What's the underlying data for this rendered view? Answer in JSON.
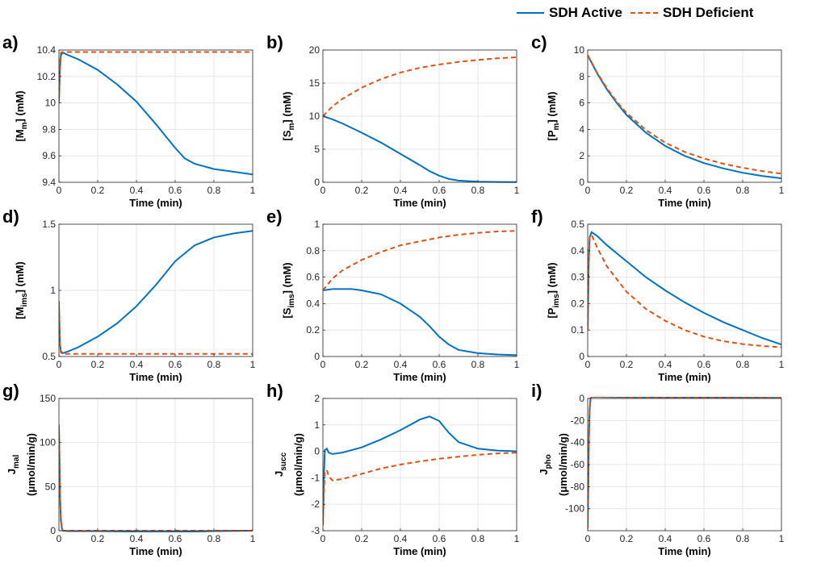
{
  "legend": {
    "items": [
      {
        "name": "SDH Active",
        "color": "#0072BD",
        "style": "solid"
      },
      {
        "name": "SDH Deficient",
        "color": "#D95319",
        "style": "dashed"
      }
    ]
  },
  "chart_data": [
    {
      "panel": "a)",
      "type": "line",
      "ylabel": "[M_m] (mM)",
      "xlabel": "Time (min)",
      "xlim": [
        0,
        1
      ],
      "ylim": [
        9.4,
        10.4
      ],
      "xticks": [
        0,
        0.2,
        0.4,
        0.6,
        0.8,
        1
      ],
      "xtick_labels": [
        "0",
        "0.2",
        "0.4",
        "0.6",
        "0.8",
        "1"
      ],
      "yticks": [
        9.4,
        9.6,
        9.8,
        10,
        10.2,
        10.4
      ],
      "ytick_labels": [
        "9.4",
        "9.6",
        "9.8",
        "10",
        "10.2",
        "10.4"
      ],
      "grid": true,
      "series": [
        {
          "name": "SDH Active",
          "x": [
            0,
            0.005,
            0.01,
            0.02,
            0.05,
            0.1,
            0.2,
            0.3,
            0.4,
            0.5,
            0.55,
            0.6,
            0.65,
            0.7,
            0.75,
            0.8,
            0.9,
            1.0
          ],
          "y": [
            10.0,
            10.25,
            10.36,
            10.38,
            10.36,
            10.33,
            10.25,
            10.14,
            10.01,
            9.84,
            9.75,
            9.66,
            9.58,
            9.54,
            9.52,
            9.5,
            9.48,
            9.46
          ]
        },
        {
          "name": "SDH Deficient",
          "x": [
            0,
            0.005,
            0.01,
            0.02,
            0.05,
            0.2,
            0.5,
            1.0
          ],
          "y": [
            10.0,
            10.3,
            10.38,
            10.385,
            10.385,
            10.385,
            10.385,
            10.385
          ]
        }
      ]
    },
    {
      "panel": "b)",
      "type": "line",
      "ylabel": "[S_m] (mM)",
      "xlabel": "Time (min)",
      "xlim": [
        0,
        1
      ],
      "ylim": [
        0,
        20
      ],
      "xticks": [
        0,
        0.2,
        0.4,
        0.6,
        0.8,
        1
      ],
      "xtick_labels": [
        "0",
        "0.2",
        "0.4",
        "0.6",
        "0.8",
        "1"
      ],
      "yticks": [
        0,
        5,
        10,
        15,
        20
      ],
      "ytick_labels": [
        "0",
        "5",
        "10",
        "15",
        "20"
      ],
      "grid": true,
      "series": [
        {
          "name": "SDH Active",
          "x": [
            0,
            0.05,
            0.1,
            0.2,
            0.3,
            0.4,
            0.5,
            0.55,
            0.6,
            0.65,
            0.7,
            0.8,
            0.9,
            1.0
          ],
          "y": [
            10,
            9.5,
            8.9,
            7.5,
            6.0,
            4.3,
            2.6,
            1.7,
            1.0,
            0.5,
            0.25,
            0.1,
            0.05,
            0.02
          ]
        },
        {
          "name": "SDH Deficient",
          "x": [
            0,
            0.05,
            0.1,
            0.2,
            0.3,
            0.4,
            0.5,
            0.6,
            0.7,
            0.8,
            0.9,
            1.0
          ],
          "y": [
            10,
            11.5,
            12.6,
            14.3,
            15.6,
            16.6,
            17.3,
            17.8,
            18.2,
            18.5,
            18.75,
            18.9
          ]
        }
      ]
    },
    {
      "panel": "c)",
      "type": "line",
      "ylabel": "[P_m] (mM)",
      "xlabel": "Time (min)",
      "xlim": [
        0,
        1
      ],
      "ylim": [
        0,
        10
      ],
      "xticks": [
        0,
        0.2,
        0.4,
        0.6,
        0.8,
        1
      ],
      "xtick_labels": [
        "0",
        "0.2",
        "0.4",
        "0.6",
        "0.8",
        "1"
      ],
      "yticks": [
        0,
        2,
        4,
        6,
        8,
        10
      ],
      "ytick_labels": [
        "0",
        "2",
        "4",
        "6",
        "8",
        "10"
      ],
      "grid": true,
      "series": [
        {
          "name": "SDH Active",
          "x": [
            0,
            0.05,
            0.1,
            0.15,
            0.2,
            0.3,
            0.4,
            0.5,
            0.6,
            0.7,
            0.8,
            0.9,
            1.0
          ],
          "y": [
            9.6,
            8.2,
            7.0,
            6.0,
            5.1,
            3.75,
            2.75,
            2.0,
            1.45,
            1.05,
            0.72,
            0.48,
            0.3
          ]
        },
        {
          "name": "SDH Deficient",
          "x": [
            0,
            0.05,
            0.1,
            0.15,
            0.2,
            0.3,
            0.4,
            0.5,
            0.6,
            0.7,
            0.8,
            0.9,
            1.0
          ],
          "y": [
            9.6,
            8.25,
            7.1,
            6.1,
            5.25,
            3.95,
            3.0,
            2.3,
            1.8,
            1.4,
            1.1,
            0.85,
            0.65
          ]
        }
      ]
    },
    {
      "panel": "d)",
      "type": "line",
      "ylabel": "[M_ims] (mM)",
      "xlabel": "Time (min)",
      "xlim": [
        0,
        1
      ],
      "ylim": [
        0.5,
        1.5
      ],
      "xticks": [
        0,
        0.2,
        0.4,
        0.6,
        0.8,
        1
      ],
      "xtick_labels": [
        "0",
        "0.2",
        "0.4",
        "0.6",
        "0.8",
        "1"
      ],
      "yticks": [
        0.5,
        1,
        1.5
      ],
      "ytick_labels": [
        "0.5",
        "1",
        "1.5"
      ],
      "grid": true,
      "series": [
        {
          "name": "SDH Active",
          "x": [
            0,
            0.005,
            0.01,
            0.02,
            0.05,
            0.1,
            0.2,
            0.3,
            0.4,
            0.5,
            0.6,
            0.7,
            0.8,
            0.9,
            1.0
          ],
          "y": [
            0.9,
            0.6,
            0.54,
            0.525,
            0.54,
            0.57,
            0.65,
            0.75,
            0.88,
            1.04,
            1.22,
            1.34,
            1.4,
            1.43,
            1.45
          ]
        },
        {
          "name": "SDH Deficient",
          "x": [
            0,
            0.005,
            0.01,
            0.02,
            0.05,
            0.2,
            0.5,
            1.0
          ],
          "y": [
            0.92,
            0.58,
            0.53,
            0.52,
            0.52,
            0.52,
            0.52,
            0.52
          ]
        }
      ]
    },
    {
      "panel": "e)",
      "type": "line",
      "ylabel": "[S_ims] (mM)",
      "xlabel": "Time (min)",
      "xlim": [
        0,
        1
      ],
      "ylim": [
        0,
        1
      ],
      "xticks": [
        0,
        0.2,
        0.4,
        0.6,
        0.8,
        1
      ],
      "xtick_labels": [
        "0",
        "0.2",
        "0.4",
        "0.6",
        "0.8",
        "1"
      ],
      "yticks": [
        0,
        0.2,
        0.4,
        0.6,
        0.8,
        1
      ],
      "ytick_labels": [
        "0",
        "0.2",
        "0.4",
        "0.6",
        "0.8",
        "1"
      ],
      "grid": true,
      "series": [
        {
          "name": "SDH Active",
          "x": [
            0,
            0.05,
            0.1,
            0.15,
            0.2,
            0.3,
            0.4,
            0.5,
            0.55,
            0.6,
            0.65,
            0.7,
            0.8,
            0.9,
            1.0
          ],
          "y": [
            0.5,
            0.51,
            0.51,
            0.51,
            0.5,
            0.47,
            0.4,
            0.3,
            0.23,
            0.15,
            0.09,
            0.05,
            0.025,
            0.015,
            0.01
          ]
        },
        {
          "name": "SDH Deficient",
          "x": [
            0,
            0.05,
            0.1,
            0.2,
            0.3,
            0.4,
            0.5,
            0.6,
            0.7,
            0.8,
            0.9,
            1.0
          ],
          "y": [
            0.5,
            0.59,
            0.65,
            0.73,
            0.79,
            0.84,
            0.87,
            0.9,
            0.92,
            0.935,
            0.945,
            0.95
          ]
        }
      ]
    },
    {
      "panel": "f)",
      "type": "line",
      "ylabel": "[P_ims] (mM)",
      "xlabel": "Time (min)",
      "xlim": [
        0,
        1
      ],
      "ylim": [
        0,
        0.5
      ],
      "xticks": [
        0,
        0.2,
        0.4,
        0.6,
        0.8,
        1
      ],
      "xtick_labels": [
        "0",
        "0.2",
        "0.4",
        "0.6",
        "0.8",
        "1"
      ],
      "yticks": [
        0,
        0.1,
        0.2,
        0.3,
        0.4,
        0.5
      ],
      "ytick_labels": [
        "0",
        "0.1",
        "0.2",
        "0.3",
        "0.4",
        "0.5"
      ],
      "grid": true,
      "series": [
        {
          "name": "SDH Active",
          "x": [
            0,
            0.005,
            0.01,
            0.02,
            0.05,
            0.1,
            0.2,
            0.3,
            0.4,
            0.5,
            0.6,
            0.7,
            0.8,
            0.9,
            1.0
          ],
          "y": [
            0.1,
            0.35,
            0.45,
            0.47,
            0.455,
            0.42,
            0.36,
            0.3,
            0.25,
            0.205,
            0.165,
            0.13,
            0.1,
            0.07,
            0.045
          ]
        },
        {
          "name": "SDH Deficient",
          "x": [
            0,
            0.005,
            0.01,
            0.02,
            0.05,
            0.1,
            0.2,
            0.3,
            0.4,
            0.5,
            0.6,
            0.7,
            0.8,
            0.9,
            1.0
          ],
          "y": [
            0.1,
            0.35,
            0.45,
            0.46,
            0.41,
            0.34,
            0.245,
            0.18,
            0.135,
            0.1,
            0.075,
            0.058,
            0.047,
            0.04,
            0.035
          ]
        }
      ]
    },
    {
      "panel": "g)",
      "type": "line",
      "ylabel": "J_mal (μmol/min/g)",
      "xlabel": "Time (min)",
      "xlim": [
        0,
        1
      ],
      "ylim": [
        0,
        150
      ],
      "xticks": [
        0,
        0.2,
        0.4,
        0.6,
        0.8,
        1
      ],
      "xtick_labels": [
        "0",
        "0.2",
        "0.4",
        "0.6",
        "0.8",
        "1"
      ],
      "yticks": [
        0,
        50,
        100,
        150
      ],
      "ytick_labels": [
        "0",
        "50",
        "100",
        "150"
      ],
      "grid": true,
      "series": [
        {
          "name": "SDH Active",
          "x": [
            0,
            0.003,
            0.006,
            0.01,
            0.015,
            0.02,
            0.05,
            0.2,
            0.4,
            0.55,
            0.7,
            0.8,
            1.0
          ],
          "y": [
            120,
            80,
            40,
            12,
            3,
            0,
            -0.5,
            -0.5,
            -1.0,
            -1.5,
            -1.0,
            -0.5,
            0
          ]
        },
        {
          "name": "SDH Deficient",
          "x": [
            0,
            0.003,
            0.006,
            0.01,
            0.015,
            0.02,
            0.05,
            0.2,
            0.5,
            1.0
          ],
          "y": [
            120,
            80,
            40,
            12,
            3,
            0,
            0,
            0,
            0,
            0
          ]
        }
      ]
    },
    {
      "panel": "h)",
      "type": "line",
      "ylabel": "J_succ (μmol/min/g)",
      "xlabel": "Time (min)",
      "xlim": [
        0,
        1
      ],
      "ylim": [
        -3,
        2
      ],
      "xticks": [
        0,
        0.2,
        0.4,
        0.6,
        0.8,
        1
      ],
      "xtick_labels": [
        "0",
        "0.2",
        "0.4",
        "0.6",
        "0.8",
        "1"
      ],
      "yticks": [
        -3,
        -2,
        -1,
        0,
        1,
        2
      ],
      "ytick_labels": [
        "-3",
        "-2",
        "-1",
        "0",
        "1",
        "2"
      ],
      "grid": true,
      "series": [
        {
          "name": "SDH Active",
          "x": [
            0,
            0.005,
            0.01,
            0.02,
            0.03,
            0.05,
            0.1,
            0.2,
            0.3,
            0.4,
            0.5,
            0.55,
            0.6,
            0.65,
            0.7,
            0.8,
            0.9,
            1.0
          ],
          "y": [
            -2.7,
            -1.0,
            0.05,
            0.1,
            -0.05,
            -0.1,
            -0.05,
            0.15,
            0.45,
            0.8,
            1.2,
            1.32,
            1.15,
            0.7,
            0.35,
            0.1,
            0.03,
            0.0
          ]
        },
        {
          "name": "SDH Deficient",
          "x": [
            0,
            0.005,
            0.01,
            0.02,
            0.03,
            0.05,
            0.1,
            0.2,
            0.3,
            0.4,
            0.5,
            0.6,
            0.7,
            0.8,
            0.9,
            1.0
          ],
          "y": [
            -2.8,
            -1.6,
            -0.8,
            -0.7,
            -0.95,
            -1.1,
            -1.05,
            -0.85,
            -0.65,
            -0.5,
            -0.38,
            -0.28,
            -0.2,
            -0.13,
            -0.08,
            -0.05
          ]
        }
      ]
    },
    {
      "panel": "i)",
      "type": "line",
      "ylabel": "J_pho (μmol/min/g)",
      "xlabel": "Time (min)",
      "xlim": [
        0,
        1
      ],
      "ylim": [
        -120,
        0
      ],
      "xticks": [
        0,
        0.2,
        0.4,
        0.6,
        0.8,
        1
      ],
      "xtick_labels": [
        "0",
        "0.2",
        "0.4",
        "0.6",
        "0.8",
        "1"
      ],
      "yticks": [
        -100,
        -80,
        -60,
        -40,
        -20,
        0
      ],
      "ytick_labels": [
        "-100",
        "-80",
        "-60",
        "-40",
        "-20",
        "0"
      ],
      "grid": true,
      "series": [
        {
          "name": "SDH Active",
          "x": [
            0,
            0.003,
            0.006,
            0.01,
            0.015,
            0.02,
            0.05,
            0.2,
            0.5,
            1.0
          ],
          "y": [
            -118,
            -80,
            -40,
            -10,
            0,
            1.5,
            1.5,
            1.2,
            0.8,
            0.5
          ]
        },
        {
          "name": "SDH Deficient",
          "x": [
            0,
            0.003,
            0.006,
            0.01,
            0.015,
            0.02,
            0.05,
            0.2,
            0.5,
            1.0
          ],
          "y": [
            -118,
            -80,
            -40,
            -10,
            0,
            1.5,
            1.5,
            1.2,
            0.8,
            0.5
          ]
        }
      ]
    }
  ]
}
